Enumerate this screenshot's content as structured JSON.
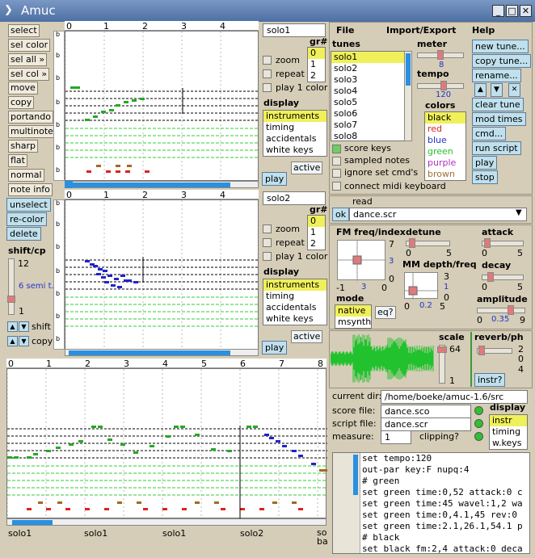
{
  "window": {
    "title": "Amuc"
  },
  "left_buttons": [
    "select",
    "sel color",
    "sel all »",
    "sel col »",
    "move",
    "copy",
    "portando",
    "multinote",
    "sharp",
    "flat",
    "normal",
    "note info"
  ],
  "sel_buttons": [
    "unselect",
    "re-color",
    "delete"
  ],
  "shift": {
    "title": "shift/cp",
    "max": "12",
    "value": "6 semi t.",
    "min": "1",
    "shift_label": "shift",
    "copy_label": "copy"
  },
  "rulers": {
    "top_ticks": [
      "0",
      "1",
      "2",
      "3",
      "4"
    ],
    "bottom_ticks": [
      "0",
      "1",
      "2",
      "3",
      "4",
      "5",
      "6",
      "7",
      "8"
    ]
  },
  "score1": {
    "name": "solo1",
    "gr_label": "gr#",
    "groups": [
      "0",
      "1",
      "2"
    ],
    "zoom": "zoom",
    "repeat": "repeat",
    "play1": "play 1 color",
    "display_label": "display",
    "display_items": [
      "instruments",
      "timing",
      "accidentals",
      "white keys"
    ],
    "active": "active",
    "play": "play"
  },
  "score2": {
    "name": "solo2",
    "gr_label": "gr#",
    "groups": [
      "0",
      "1",
      "2"
    ],
    "zoom": "zoom",
    "repeat": "repeat",
    "play1": "play 1 color",
    "display_label": "display",
    "display_items": [
      "instruments",
      "timing",
      "accidentals",
      "white keys"
    ],
    "active": "active",
    "play": "play"
  },
  "bottom_labels": [
    "solo1",
    "solo1",
    "solo1",
    "solo2",
    "so ba"
  ],
  "menu": {
    "file": "File",
    "import": "Import/Export",
    "help": "Help"
  },
  "tunes": {
    "label": "tunes",
    "items": [
      "solo1",
      "solo2",
      "solo3",
      "solo4",
      "solo5",
      "solo6",
      "solo7",
      "solo8"
    ]
  },
  "meter": {
    "label": "meter",
    "value": "8"
  },
  "tempo": {
    "label": "tempo",
    "value": "120"
  },
  "colors": {
    "label": "colors",
    "items": [
      "black",
      "red",
      "blue",
      "green",
      "purple",
      "brown"
    ]
  },
  "tune_buttons": [
    "new tune...",
    "copy tune...",
    "rename...",
    "clear tune",
    "mod times",
    "cmd...",
    "run script",
    "play",
    "stop"
  ],
  "arrow_buttons": [
    "▲",
    "▼",
    "✕"
  ],
  "checks": [
    "score keys",
    "sampled notes",
    "ignore set cmd's",
    "connect midi keyboard"
  ],
  "read": {
    "label": "read",
    "ok": "ok",
    "value": "dance.scr"
  },
  "fm": {
    "title": "FM freq/index",
    "detune": "detune",
    "attack": "attack",
    "decay": "decay",
    "amplitude": "amplitude",
    "mm": "MM depth/freq",
    "mode": "mode",
    "modes": [
      "native",
      "msynth"
    ],
    "eq": "eq?",
    "freq_min": "-1",
    "freq_val": "3",
    "freq_max": "0",
    "idx_max": "7",
    "idx_val": "3",
    "idx_min": "0",
    "detune_min": "0",
    "detune_max": "5",
    "attack_min": "0",
    "attack_max": "5",
    "mm_max": "3",
    "mm_val": "1",
    "mm_min": "0",
    "mm_fmin": "0",
    "mm_fval": "0.2",
    "mm_fmax": "5",
    "decay_min": "0",
    "decay_max": "5",
    "amp_min": "0",
    "amp_val": "0.35",
    "amp_max": "9"
  },
  "scale": {
    "label": "scale",
    "value": "64",
    "min": "1"
  },
  "reverb": {
    "label": "reverb/ph",
    "max": "2",
    "val": "0",
    "min": "4",
    "instr": "instr?"
  },
  "files": {
    "curdir_label": "current dir:",
    "curdir": "/home/boeke/amuc-1.6/src",
    "score_label": "score file:",
    "score": "dance.sco",
    "script_label": "script file:",
    "script": "dance.scr",
    "measure_label": "measure:",
    "measure": "1",
    "clipping": "clipping?",
    "display_label": "display",
    "display_items": [
      "instr",
      "timing",
      "w.keys"
    ]
  },
  "script_lines": [
    "set tempo:120",
    "out-par key:F nupq:4",
    "# green",
    "set green time:0,52 attack:0 c",
    "set green time:45 wavel:1,2 wa",
    "set green time:0,4.1,45 rev:0",
    "set green time:2.1,26.1,54.1 p",
    "# black",
    "set black fm:2,4 attack:0 deca"
  ]
}
